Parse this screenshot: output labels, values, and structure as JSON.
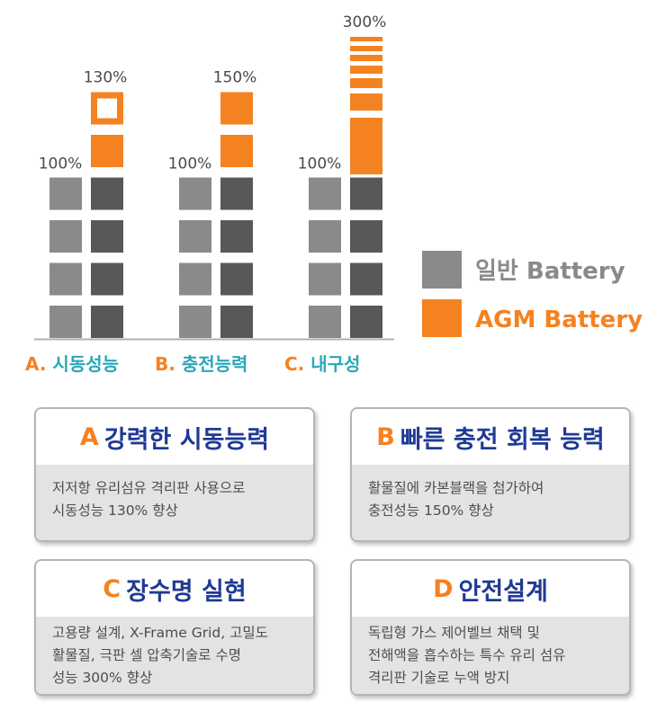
{
  "chart_data": {
    "type": "bar",
    "categories": [
      "A. 시동성능",
      "B. 충전능력",
      "C. 내구성"
    ],
    "series": [
      {
        "name": "일반 Battery",
        "values": [
          100,
          100,
          100
        ],
        "labels": [
          "100%",
          "100%",
          "100%"
        ]
      },
      {
        "name": "AGM Battery",
        "values": [
          130,
          150,
          300
        ],
        "labels": [
          "130%",
          "150%",
          "300%"
        ]
      }
    ],
    "legend": {
      "position": "right",
      "entries": [
        "일반 Battery",
        "AGM Battery"
      ]
    },
    "colors": {
      "general": "#8a8a8c",
      "general_dark": "#58585a",
      "agm": "#f58220",
      "category": "#f58220",
      "category_alt": "#2aa7b8"
    }
  },
  "cards": [
    {
      "letter": "A",
      "title": "강력한 시동능력",
      "lines": [
        "저저항 유리섬유 격리판 사용으로",
        "시동성능 130% 향상"
      ]
    },
    {
      "letter": "B",
      "title": "빠른 충전 회복 능력",
      "lines": [
        "활물질에 카본블랙을 첨가하여",
        "충전성능 150% 향상"
      ]
    },
    {
      "letter": "C",
      "title": "장수명 실현",
      "lines": [
        "고용량 설계,  X-Frame Grid, 고밀도",
        "활물질, 극판 셀 압축기술로 수명",
        "성능 300% 향상"
      ]
    },
    {
      "letter": "D",
      "title": "안전설계",
      "lines": [
        "독립형 가스 제어벨브 채택 및",
        "전해액을 흡수하는 특수 유리 섬유",
        "격리판 기술로 누액 방지"
      ]
    }
  ]
}
